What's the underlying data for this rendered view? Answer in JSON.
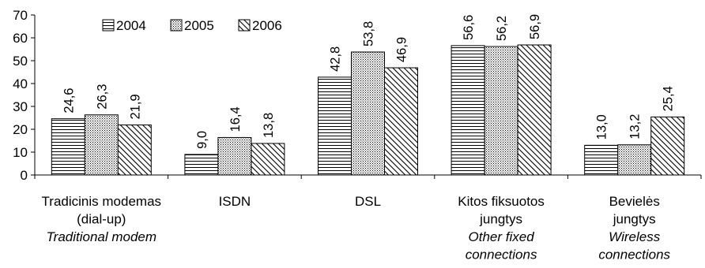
{
  "chart_data": {
    "type": "bar",
    "categories": [
      {
        "lines": [
          "Tradicinis modemas",
          "(dial-up)"
        ],
        "italic_lines": [
          "Traditional modem"
        ]
      },
      {
        "lines": [
          "ISDN"
        ],
        "italic_lines": []
      },
      {
        "lines": [
          "DSL"
        ],
        "italic_lines": []
      },
      {
        "lines": [
          "Kitos fiksuotos",
          "jungtys"
        ],
        "italic_lines": [
          "Other fixed",
          "connections"
        ]
      },
      {
        "lines": [
          "Bevielės",
          "jungtys"
        ],
        "italic_lines": [
          "Wireless",
          "connections"
        ]
      }
    ],
    "series": [
      {
        "name": "2004",
        "pattern": "horizontal-lines",
        "values": [
          24.6,
          9.0,
          42.8,
          56.6,
          13.0
        ],
        "labels": [
          "24,6",
          "9,0",
          "42,8",
          "56,6",
          "13,0"
        ]
      },
      {
        "name": "2005",
        "pattern": "dots",
        "values": [
          26.3,
          16.4,
          53.8,
          56.2,
          13.2
        ],
        "labels": [
          "26,3",
          "16,4",
          "53,8",
          "56,2",
          "13,2"
        ]
      },
      {
        "name": "2006",
        "pattern": "diagonal-lines",
        "values": [
          21.9,
          13.8,
          46.9,
          56.9,
          25.4
        ],
        "labels": [
          "21,9",
          "13,8",
          "46,9",
          "56,9",
          "25,4"
        ]
      }
    ],
    "ylim": [
      0,
      70
    ],
    "yticks": [
      0,
      10,
      20,
      30,
      40,
      50,
      60,
      70
    ],
    "grid": false,
    "legend": "top-left",
    "title": "",
    "xlabel": "",
    "ylabel": ""
  }
}
